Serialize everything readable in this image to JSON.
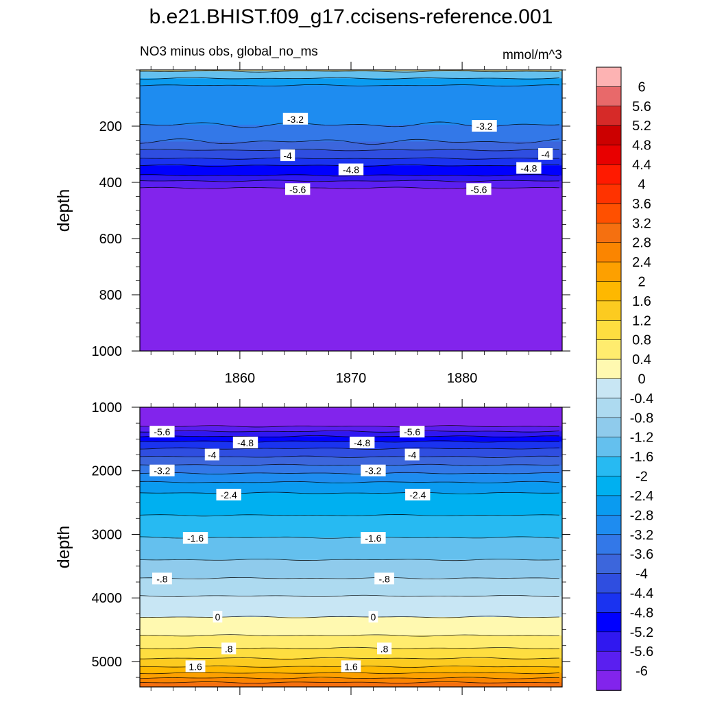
{
  "chart_data": {
    "type": "heatmap",
    "title": "b.e21.BHIST.f09_g17.ccisens-reference.001",
    "left_subtitle": "NO3 minus obs, global_no_ms",
    "right_subtitle": "mmol/m^3",
    "x_ticks": [
      "1860",
      "1870",
      "1880"
    ],
    "x_range": [
      1851,
      1889
    ],
    "panels": [
      {
        "name": "upper",
        "ylabel": "depth",
        "ylim": [
          0,
          1000
        ],
        "y_ticks": [
          "200",
          "400",
          "600",
          "800",
          "1000"
        ],
        "contours": [
          {
            "depth": 5,
            "value": 0.0
          },
          {
            "depth": 30,
            "value": -2.4
          },
          {
            "depth": 55,
            "value": -2.8
          },
          {
            "depth": 195,
            "value": -3.2
          },
          {
            "depth": 255,
            "value": -3.6
          },
          {
            "depth": 285,
            "value": -4.0
          },
          {
            "depth": 315,
            "value": -4.4
          },
          {
            "depth": 340,
            "value": -4.8
          },
          {
            "depth": 375,
            "value": -5.2
          },
          {
            "depth": 395,
            "value": -5.6
          },
          {
            "depth": 420,
            "value": -6.0
          }
        ],
        "contour_labels": [
          {
            "text": "-3.2",
            "x": 1865.0,
            "depth": 175
          },
          {
            "text": "-3.2",
            "x": 1882.0,
            "depth": 200
          },
          {
            "text": "-4",
            "x": 1864.3,
            "depth": 305
          },
          {
            "text": "-4",
            "x": 1887.5,
            "depth": 300
          },
          {
            "text": "-4.8",
            "x": 1870.0,
            "depth": 355
          },
          {
            "text": "-4.8",
            "x": 1886.0,
            "depth": 350
          },
          {
            "text": "-5.6",
            "x": 1865.2,
            "depth": 425
          },
          {
            "text": "-5.6",
            "x": 1881.5,
            "depth": 425
          }
        ]
      },
      {
        "name": "lower",
        "ylabel": "depth",
        "ylim": [
          1000,
          5400
        ],
        "y_ticks": [
          "1000",
          "2000",
          "3000",
          "4000",
          "5000"
        ],
        "contours": [
          {
            "depth": 1300,
            "value": -6.0
          },
          {
            "depth": 1380,
            "value": -5.6
          },
          {
            "depth": 1460,
            "value": -5.2
          },
          {
            "depth": 1540,
            "value": -4.8
          },
          {
            "depth": 1650,
            "value": -4.4
          },
          {
            "depth": 1780,
            "value": -4.0
          },
          {
            "depth": 1910,
            "value": -3.6
          },
          {
            "depth": 2040,
            "value": -3.2
          },
          {
            "depth": 2180,
            "value": -2.8
          },
          {
            "depth": 2350,
            "value": -2.4
          },
          {
            "depth": 2700,
            "value": -2.0
          },
          {
            "depth": 3050,
            "value": -1.6
          },
          {
            "depth": 3400,
            "value": -1.2
          },
          {
            "depth": 3690,
            "value": -0.8
          },
          {
            "depth": 3970,
            "value": -0.4
          },
          {
            "depth": 4300,
            "value": 0.0
          },
          {
            "depth": 4590,
            "value": 0.4
          },
          {
            "depth": 4790,
            "value": 0.8
          },
          {
            "depth": 4950,
            "value": 1.2
          },
          {
            "depth": 5080,
            "value": 1.6
          },
          {
            "depth": 5180,
            "value": 2.0
          },
          {
            "depth": 5260,
            "value": 2.4
          },
          {
            "depth": 5330,
            "value": 2.8
          }
        ],
        "contour_labels": [
          {
            "text": "-5.6",
            "x": 1853.0,
            "depth": 1390
          },
          {
            "text": "-5.6",
            "x": 1875.5,
            "depth": 1390
          },
          {
            "text": "-4.8",
            "x": 1860.5,
            "depth": 1560
          },
          {
            "text": "-4.8",
            "x": 1871.0,
            "depth": 1560
          },
          {
            "text": "-4",
            "x": 1857.5,
            "depth": 1750
          },
          {
            "text": "-4",
            "x": 1875.5,
            "depth": 1750
          },
          {
            "text": "-3.2",
            "x": 1853.0,
            "depth": 2000
          },
          {
            "text": "-3.2",
            "x": 1872.0,
            "depth": 2000
          },
          {
            "text": "-2.4",
            "x": 1859.0,
            "depth": 2380
          },
          {
            "text": "-2.4",
            "x": 1876.0,
            "depth": 2380
          },
          {
            "text": "-1.6",
            "x": 1856.0,
            "depth": 3060
          },
          {
            "text": "-1.6",
            "x": 1872.0,
            "depth": 3060
          },
          {
            "text": "-.8",
            "x": 1853.0,
            "depth": 3700
          },
          {
            "text": "-.8",
            "x": 1873.0,
            "depth": 3700
          },
          {
            "text": "0",
            "x": 1858.0,
            "depth": 4300
          },
          {
            "text": "0",
            "x": 1872.0,
            "depth": 4300
          },
          {
            "text": ".8",
            "x": 1859.0,
            "depth": 4800
          },
          {
            "text": ".8",
            "x": 1873.0,
            "depth": 4800
          },
          {
            "text": "1.6",
            "x": 1856.0,
            "depth": 5080
          },
          {
            "text": "1.6",
            "x": 1870.0,
            "depth": 5080
          }
        ]
      }
    ],
    "colorbar": {
      "levels": [
        "6",
        "5.6",
        "5.2",
        "4.8",
        "4.4",
        "4",
        "3.6",
        "3.2",
        "2.8",
        "2.4",
        "2",
        "1.6",
        "1.2",
        "0.8",
        "0.4",
        "0",
        "-0.4",
        "-0.8",
        "-1.2",
        "-1.6",
        "-2",
        "-2.4",
        "-2.8",
        "-3.2",
        "-3.6",
        "-4",
        "-4.4",
        "-4.8",
        "-5.2",
        "-5.6",
        "-6"
      ],
      "colors": [
        "#fdb3b3",
        "#e8696a",
        "#d62a28",
        "#cc0000",
        "#e80000",
        "#ff1a00",
        "#ff3300",
        "#ff5000",
        "#f57010",
        "#fb8500",
        "#fda000",
        "#feb800",
        "#fccb20",
        "#fede40",
        "#ffec6e",
        "#fff9b0",
        "#c8e6f4",
        "#addaf0",
        "#8fcbec",
        "#64c0ee",
        "#27baf2",
        "#00b0f0",
        "#0a9bf0",
        "#1e8cf0",
        "#3378e8",
        "#3c66dc",
        "#2f4ee0",
        "#1a33f0",
        "#0000ff",
        "#3018f0",
        "#5a1ff0",
        "#8224ec"
      ]
    }
  }
}
